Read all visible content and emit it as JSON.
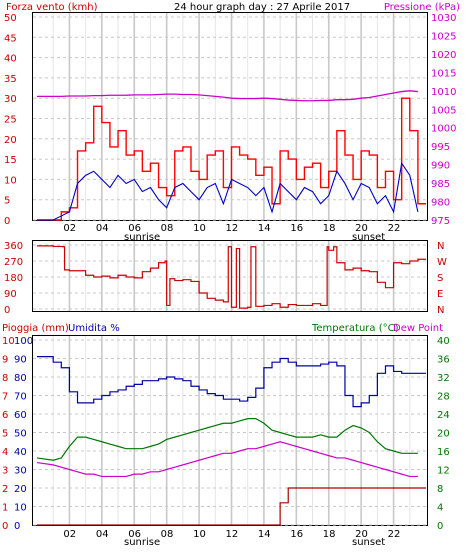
{
  "title": "24 hour graph day : 27 Aprile 2017",
  "x_ticks": [
    "02",
    "04",
    "06",
    "08",
    "10",
    "12",
    "14",
    "16",
    "18",
    "20",
    "22"
  ],
  "sunrise_label": "sunrise",
  "sunset_label": "sunset",
  "colors": {
    "wind_gust": "#ff0000",
    "wind_avg": "#0000cc",
    "pressure": "#cc00cc",
    "direction": "#cc0000",
    "humidity": "#0000aa",
    "temperature": "#007700",
    "dewpoint": "#cc00cc",
    "rain": "#aa0000",
    "grid": "#c8c8c8",
    "sun_band": "#e0e0e0"
  },
  "chart_data": [
    {
      "type": "line",
      "panel": "wind_pressure",
      "ylabel_left": "Forza vento (kmh)",
      "ylabel_right": "Pressione (kPa)",
      "ylim_left": [
        0,
        50
      ],
      "ylim_right": [
        975,
        1030
      ],
      "yticks_left": [
        "0",
        "5",
        "10",
        "15",
        "20",
        "25",
        "30",
        "35",
        "40",
        "45",
        "50"
      ],
      "yticks_right": [
        "975",
        "980",
        "985",
        "990",
        "995",
        "1000",
        "1005",
        "1010",
        "1015",
        "1020",
        "1025",
        "1030"
      ],
      "x_hours": [
        0,
        1,
        1.5,
        2,
        2.5,
        3,
        3.5,
        4,
        4.5,
        5,
        5.5,
        6,
        6.5,
        7,
        7.5,
        8,
        8.5,
        9,
        9.5,
        10,
        10.5,
        11,
        11.5,
        12,
        12.5,
        13,
        13.5,
        14,
        14.5,
        15,
        15.5,
        16,
        16.5,
        17,
        17.5,
        18,
        18.5,
        19,
        19.5,
        20,
        20.5,
        21,
        21.5,
        22,
        22.5,
        23,
        23.5
      ],
      "series": [
        {
          "values": [
            0,
            0,
            2,
            3,
            17,
            19,
            28,
            24,
            18,
            22,
            16,
            17,
            12,
            14,
            8,
            6,
            17,
            18,
            12,
            10,
            16,
            17,
            8,
            18,
            16,
            15,
            11,
            13,
            4,
            17,
            15,
            10,
            13,
            14,
            8,
            12,
            22,
            16,
            10,
            17,
            16,
            8,
            12,
            5,
            30,
            22,
            4
          ]
        },
        {
          "values": [
            0,
            0,
            1,
            2,
            9,
            11,
            12,
            10,
            8,
            11,
            9,
            10,
            7,
            8,
            5,
            3,
            8,
            9,
            7,
            5,
            8,
            9,
            4,
            10,
            9,
            8,
            6,
            8,
            2,
            9,
            7,
            5,
            8,
            7,
            4,
            6,
            12,
            9,
            5,
            9,
            8,
            4,
            6,
            2,
            14,
            11,
            2
          ]
        },
        {
          "values": [
            1008.5,
            1008.5,
            1008.5,
            1008.6,
            1008.6,
            1008.6,
            1008.7,
            1008.7,
            1008.8,
            1008.8,
            1008.8,
            1008.9,
            1008.9,
            1008.9,
            1009.0,
            1009.1,
            1009.1,
            1009.0,
            1009.0,
            1008.9,
            1008.7,
            1008.5,
            1008.3,
            1008.0,
            1007.9,
            1007.9,
            1007.9,
            1008.0,
            1007.9,
            1007.7,
            1007.5,
            1007.4,
            1007.3,
            1007.3,
            1007.4,
            1007.4,
            1007.6,
            1007.6,
            1007.7,
            1008.0,
            1008.2,
            1008.6,
            1009.0,
            1009.4,
            1009.8,
            1010.0,
            1009.8
          ]
        }
      ]
    },
    {
      "type": "line",
      "panel": "wind_direction",
      "yticks_left": [
        "0",
        "90",
        "180",
        "270",
        "360"
      ],
      "compass": [
        "N",
        "W",
        "S",
        "E",
        "N"
      ],
      "ylim": [
        0,
        360
      ],
      "x_hours": [
        0,
        1,
        1.6,
        1.7,
        2,
        2.5,
        3,
        3.5,
        4,
        4.5,
        5,
        5.5,
        6,
        6.5,
        7,
        7.5,
        7.9,
        8,
        8.2,
        8.5,
        9,
        9.5,
        10,
        10.5,
        11,
        11.5,
        11.8,
        12,
        12.3,
        12.5,
        13,
        13.2,
        13.5,
        14,
        14.5,
        15,
        15.5,
        16,
        16.5,
        17,
        17.5,
        17.9,
        18,
        18.3,
        18.5,
        19,
        19.5,
        20,
        20.5,
        21,
        21.5,
        22,
        22.5,
        23,
        23.5
      ],
      "series": [
        {
          "values": [
            355,
            352,
            350,
            220,
            215,
            215,
            190,
            180,
            185,
            175,
            190,
            180,
            175,
            210,
            230,
            260,
            270,
            20,
            170,
            160,
            165,
            155,
            90,
            60,
            50,
            40,
            350,
            10,
            340,
            5,
            10,
            350,
            15,
            20,
            30,
            10,
            25,
            20,
            20,
            30,
            20,
            350,
            330,
            350,
            260,
            220,
            230,
            215,
            210,
            150,
            120,
            260,
            255,
            270,
            280
          ]
        }
      ]
    },
    {
      "type": "line",
      "panel": "temp_hum_rain",
      "ylabel_left": "Pioggia (mm)",
      "ylabel_left2": "Umidita %",
      "ylabel_right": "Temperatura (°C)",
      "ylabel_right2": "Dew Point",
      "yticks_rain": [
        "0",
        "1",
        "2",
        "3",
        "4",
        "5",
        "6",
        "7",
        "8",
        "9",
        "10"
      ],
      "yticks_hum": [
        "0",
        "10",
        "20",
        "30",
        "40",
        "50",
        "60",
        "70",
        "80",
        "90",
        "100"
      ],
      "yticks_temp": [
        "0",
        "4",
        "8",
        "12",
        "16",
        "20",
        "24",
        "28",
        "32",
        "36",
        "40"
      ],
      "x_hours": [
        0,
        1,
        1.5,
        2,
        2.5,
        3,
        3.5,
        4,
        4.5,
        5,
        5.5,
        6,
        6.5,
        7,
        7.5,
        8,
        8.5,
        9,
        9.5,
        10,
        10.5,
        11,
        11.5,
        12,
        12.5,
        13,
        13.5,
        14,
        14.5,
        15,
        15.5,
        16,
        16.5,
        17,
        17.5,
        18,
        18.5,
        19,
        19.5,
        20,
        20.5,
        21,
        21.5,
        22,
        22.5,
        23,
        23.5
      ],
      "series": [
        {
          "values": [
            91,
            88,
            85,
            72,
            66,
            66,
            68,
            70,
            72,
            73,
            75,
            76,
            78,
            78,
            79,
            80,
            79,
            78,
            75,
            73,
            71,
            70,
            68,
            68,
            67,
            69,
            74,
            85,
            88,
            90,
            88,
            86,
            86,
            86,
            87,
            88,
            86,
            70,
            64,
            66,
            70,
            82,
            86,
            83,
            82,
            82,
            82
          ]
        },
        {
          "values": [
            14.5,
            14.0,
            14.5,
            17.0,
            19.0,
            19.0,
            18.5,
            18.0,
            17.5,
            17.0,
            16.5,
            16.5,
            16.5,
            17.0,
            17.5,
            18.5,
            19.0,
            19.5,
            20.0,
            20.5,
            21.0,
            21.5,
            22.0,
            22.0,
            22.5,
            23.0,
            23.0,
            22.0,
            20.5,
            20.0,
            19.5,
            19.0,
            19.0,
            19.0,
            19.5,
            19.0,
            19.0,
            20.5,
            21.5,
            21.0,
            20.0,
            18.0,
            16.5,
            16.0,
            15.5,
            15.5,
            15.5
          ]
        },
        {
          "values": [
            13.5,
            13.0,
            12.5,
            12.0,
            11.5,
            11.0,
            11.0,
            10.5,
            10.5,
            10.5,
            10.5,
            11.0,
            11.0,
            11.5,
            11.5,
            12.0,
            12.5,
            13.0,
            13.5,
            14.0,
            14.5,
            15.0,
            15.5,
            15.5,
            16.0,
            16.5,
            16.5,
            17.0,
            17.5,
            18.0,
            17.5,
            17.0,
            16.5,
            16.0,
            15.5,
            15.0,
            14.5,
            14.5,
            14.0,
            13.5,
            13.0,
            12.5,
            12.0,
            11.5,
            11.0,
            10.5,
            10.5
          ]
        },
        {
          "values": [
            0,
            0,
            0,
            0,
            0,
            0,
            0,
            0,
            0,
            0,
            0,
            0,
            0,
            0,
            0,
            0,
            0,
            0,
            0,
            0,
            0,
            0,
            0,
            0,
            0,
            0,
            0,
            0,
            0,
            1.2,
            2.0,
            2.0,
            2.0,
            2.0,
            2.0,
            2.0,
            2.0,
            2.0,
            2.0,
            2.0,
            2.0,
            2.0,
            2.0,
            2.0,
            2.0,
            2.0,
            2.0
          ]
        }
      ]
    }
  ]
}
